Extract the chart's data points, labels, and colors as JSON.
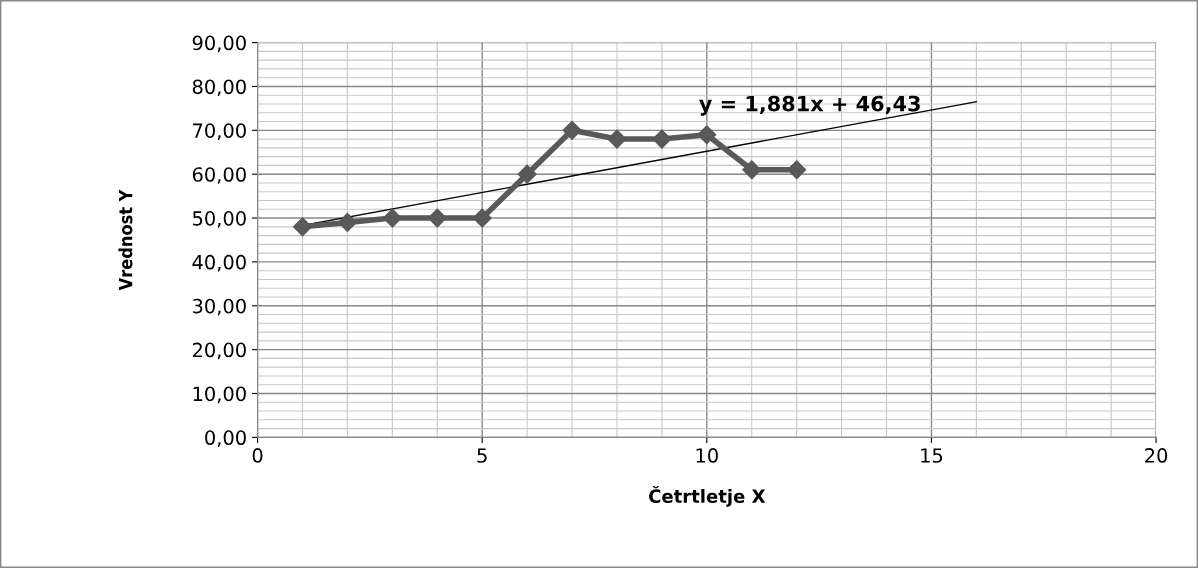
{
  "chart_data": {
    "type": "line",
    "xlabel": "Četrtletje X",
    "ylabel": "Vrednost Y",
    "xlim": [
      0,
      20
    ],
    "xticks": [
      0,
      5,
      10,
      15,
      20
    ],
    "ylim": [
      0,
      90
    ],
    "yticks": [
      {
        "value": 0,
        "label": "0,00"
      },
      {
        "value": 10,
        "label": "10,00"
      },
      {
        "value": 20,
        "label": "20,00"
      },
      {
        "value": 30,
        "label": "30,00"
      },
      {
        "value": 40,
        "label": "40,00"
      },
      {
        "value": 50,
        "label": "50,00"
      },
      {
        "value": 60,
        "label": "60,00"
      },
      {
        "value": 70,
        "label": "70,00"
      },
      {
        "value": 80,
        "label": "80,00"
      },
      {
        "value": 90,
        "label": "90,00"
      }
    ],
    "grid": true,
    "legend": false,
    "series": [
      {
        "x": [
          1,
          2,
          3,
          4,
          5,
          6,
          7,
          8,
          9,
          10,
          11,
          12
        ],
        "values": [
          48,
          49,
          50,
          50,
          50,
          60,
          70,
          68,
          68,
          69,
          61,
          61
        ],
        "color": "#595959",
        "marker": "diamond",
        "line_style": "solid"
      },
      {
        "x": [
          1,
          16
        ],
        "values": [
          48.3,
          76.5
        ],
        "color": "#000000",
        "marker": "none",
        "line_style": "solid"
      }
    ],
    "annotations": [
      "y = 1,881x + 46,43"
    ]
  }
}
